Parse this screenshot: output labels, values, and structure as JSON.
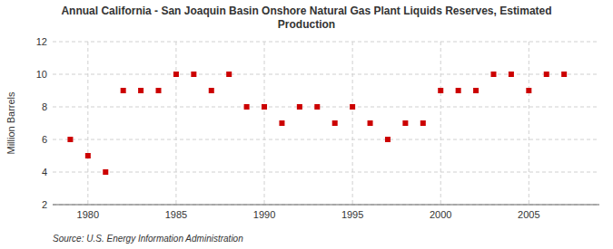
{
  "chart_data": {
    "type": "scatter",
    "title": "Annual California - San Joaquin Basin Onshore Natural Gas Plant Liquids Reserves, Estimated\nProduction",
    "y_label": "Million Barrels",
    "annotations": [
      "Source: U.S. Energy Information Administration"
    ],
    "x": [
      1979,
      1980,
      1981,
      1982,
      1983,
      1984,
      1985,
      1986,
      1987,
      1988,
      1989,
      1990,
      1991,
      1992,
      1993,
      1994,
      1995,
      1996,
      1997,
      1998,
      1999,
      2000,
      2001,
      2002,
      2003,
      2004,
      2005,
      2006,
      2007
    ],
    "values": [
      6,
      5,
      4,
      9,
      9,
      9,
      10,
      10,
      9,
      10,
      8,
      8,
      7,
      8,
      8,
      7,
      8,
      7,
      6,
      7,
      7,
      9,
      9,
      9,
      10,
      10,
      9,
      10,
      10
    ],
    "color": "#cc0000",
    "marker": "square",
    "xlim": [
      1978,
      2009
    ],
    "ylim": [
      2,
      12
    ],
    "xticks": [
      1980,
      1985,
      1990,
      1995,
      2000,
      2005
    ],
    "yticks": [
      2,
      4,
      6,
      8,
      10,
      12
    ],
    "grid": true
  }
}
